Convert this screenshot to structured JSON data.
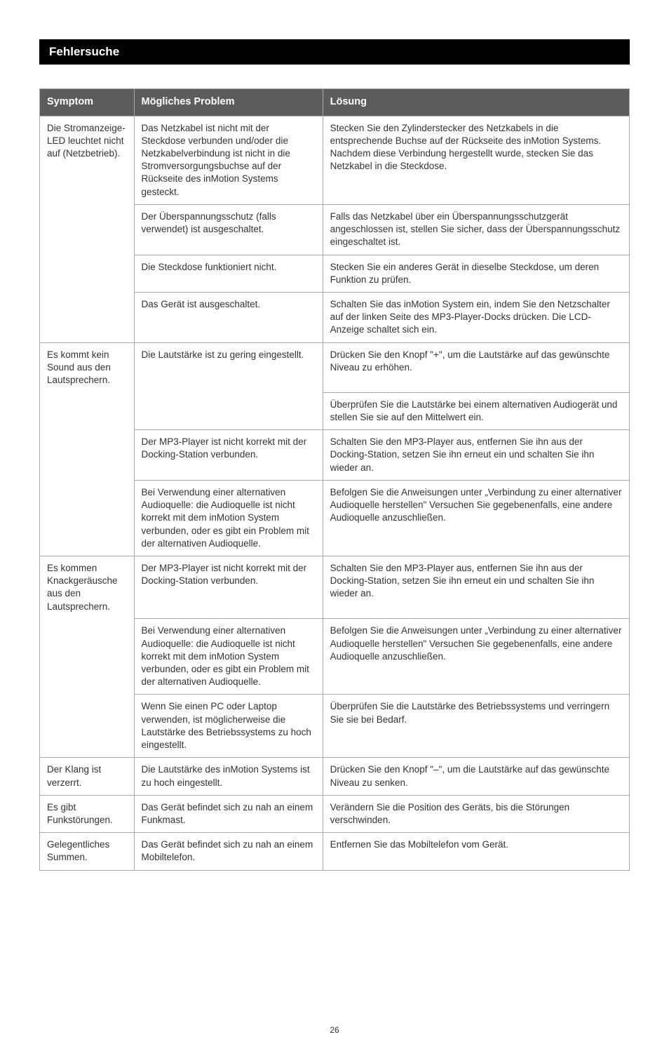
{
  "page": {
    "section_title": "Fehlersuche",
    "page_number": "26",
    "colors": {
      "title_bar_bg": "#000000",
      "title_bar_text": "#ffffff",
      "header_row_bg": "#5c5c5c",
      "header_row_text": "#ffffff",
      "cell_border": "#a9a9a9",
      "body_text": "#333333",
      "page_bg": "#ffffff"
    },
    "table": {
      "columns": [
        {
          "key": "symptom",
          "label": "Symptom",
          "width_pct": 16
        },
        {
          "key": "problem",
          "label": "Mögliches Problem",
          "width_pct": 32
        },
        {
          "key": "solution",
          "label": "Lösung",
          "width_pct": 52
        }
      ],
      "rows": [
        {
          "symptom_first": true,
          "symptom": "Die Stromanzeige-LED leuchtet nicht auf (Netzbetrieb).",
          "problem_first": true,
          "problem": "Das Netzkabel ist nicht mit der Steckdose verbunden und/oder die Netzkabelverbindung ist nicht in die Stromversorgungsbuchse auf der Rückseite des inMotion Systems gesteckt.",
          "solution": "Stecken Sie den Zylinderstecker des Netzkabels in die entsprechende Buchse auf der Rückseite des inMotion Systems. Nachdem diese Verbindung hergestellt wurde, stecken Sie das Netzkabel in die Steckdose."
        },
        {
          "symptom_first": false,
          "symptom": "",
          "problem_first": true,
          "problem": "Der Überspannungsschutz (falls verwendet) ist ausgeschaltet.",
          "solution": "Falls das Netzkabel über ein Überspannungsschutzgerät angeschlossen ist, stellen Sie sicher, dass der Überspannungsschutz eingeschaltet ist."
        },
        {
          "symptom_first": false,
          "symptom": "",
          "problem_first": true,
          "problem": "Die Steckdose funktioniert nicht.",
          "solution": "Stecken Sie ein anderes Gerät in dieselbe Steckdose, um deren Funktion zu prüfen."
        },
        {
          "symptom_first": false,
          "symptom_last": true,
          "symptom": "",
          "problem_first": true,
          "problem": "Das Gerät ist ausgeschaltet.",
          "solution": "Schalten Sie das inMotion System ein, indem Sie den Netzschalter auf der linken Seite des MP3-Player-Docks drücken. Die LCD-Anzeige schaltet sich ein."
        },
        {
          "symptom_first": true,
          "symptom": "Es kommt kein Sound aus den Lautsprechern.",
          "problem_first": true,
          "problem": "Die Lautstärke ist zu gering eingestellt.",
          "solution": "Drücken Sie den Knopf \"+\", um die Lautstärke auf das gewünschte Niveau zu erhöhen."
        },
        {
          "symptom_first": false,
          "symptom": "",
          "problem_first": false,
          "problem_last": true,
          "problem": "",
          "solution": "Überprüfen Sie die Lautstärke bei einem alternativen Audiogerät und stellen Sie sie auf den Mittelwert ein."
        },
        {
          "symptom_first": false,
          "symptom": "",
          "problem_first": true,
          "problem": "Der MP3-Player ist nicht korrekt mit der Docking-Station verbunden.",
          "solution": "Schalten Sie den MP3-Player aus, entfernen Sie ihn aus der Docking-Station, setzen Sie ihn erneut ein und schalten Sie ihn wieder an."
        },
        {
          "symptom_first": false,
          "symptom_last": true,
          "symptom": "",
          "problem_first": true,
          "problem": "Bei Verwendung einer alternativen Audioquelle: die Audioquelle ist nicht korrekt mit dem inMotion System verbunden, oder es gibt ein Problem mit der alternativen Audioquelle.",
          "solution": "Befolgen Sie die Anweisungen unter „Verbindung zu einer alternativer Audioquelle herstellen\" Versuchen Sie gegebenenfalls, eine andere Audioquelle anzuschließen."
        },
        {
          "symptom_first": true,
          "symptom": "Es kommen Knackgeräusche aus den Lautsprechern.",
          "problem_first": true,
          "problem": "Der MP3-Player ist nicht korrekt mit der Docking-Station verbunden.",
          "solution": "Schalten Sie den MP3-Player aus, entfernen Sie ihn aus der Docking-Station, setzen Sie ihn erneut ein und schalten Sie ihn wieder an."
        },
        {
          "symptom_first": false,
          "symptom": "",
          "problem_first": true,
          "problem": "Bei Verwendung einer alternativen Audioquelle: die Audioquelle ist nicht korrekt mit dem inMotion System verbunden, oder es gibt ein Problem mit der alternativen Audioquelle.",
          "solution": "Befolgen Sie die Anweisungen unter „Verbindung zu einer alternativer Audioquelle herstellen\" Versuchen Sie gegebenenfalls, eine andere Audioquelle anzuschließen."
        },
        {
          "symptom_first": false,
          "symptom_last": true,
          "symptom": "",
          "problem_first": true,
          "problem": "Wenn Sie einen PC oder Laptop verwenden, ist möglicherweise die Lautstärke des Betriebssystems zu hoch eingestellt.",
          "solution": "Überprüfen Sie die Lautstärke des Betriebssystems und verringern Sie sie bei Bedarf."
        },
        {
          "symptom_first": true,
          "symptom_last": true,
          "symptom": "Der Klang ist verzerrt.",
          "problem_first": true,
          "problem": "Die Lautstärke des inMotion Systems ist zu hoch eingestellt.",
          "solution": "Drücken Sie den Knopf \"–\", um die Lautstärke auf das gewünschte Niveau zu senken."
        },
        {
          "symptom_first": true,
          "symptom_last": true,
          "symptom": "Es gibt Funkstörungen.",
          "problem_first": true,
          "problem": "Das Gerät befindet sich zu nah an einem Funkmast.",
          "solution": "Verändern Sie die Position des Geräts, bis die Störungen verschwinden."
        },
        {
          "symptom_first": true,
          "symptom_last": true,
          "symptom": "Gelegentliches Summen.",
          "problem_first": true,
          "problem": "Das Gerät befindet sich zu nah an einem Mobiltelefon.",
          "solution": "Entfernen Sie das Mobiltelefon vom Gerät."
        }
      ]
    }
  }
}
